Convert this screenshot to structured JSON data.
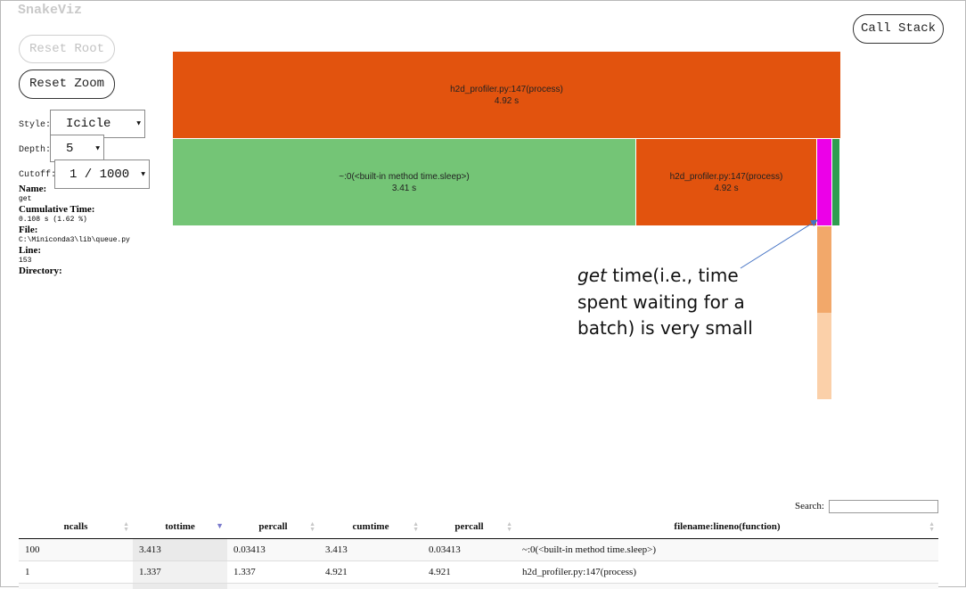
{
  "app": {
    "title": "SnakeViz"
  },
  "controls": {
    "reset_root": "Reset Root",
    "reset_zoom": "Reset Zoom",
    "call_stack": "Call Stack",
    "style_label": "Style:",
    "style_value": "Icicle",
    "depth_label": "Depth:",
    "depth_value": "5",
    "cutoff_label": "Cutoff:",
    "cutoff_value": "1 / 1000"
  },
  "info": {
    "name_label": "Name:",
    "name": "get",
    "cumtime_label": "Cumulative Time:",
    "cumtime": "0.108 s (1.62 %)",
    "file_label": "File:",
    "file": "C:\\Miniconda3\\lib\\queue.py",
    "line_label": "Line:",
    "line": "153",
    "directory_label": "Directory:"
  },
  "icicle": {
    "root": {
      "label": "h2d_profiler.py:147(process)",
      "time": "4.92 s",
      "color": "#e2530e"
    },
    "sleep": {
      "label": "~:0(<built-in method time.sleep>)",
      "time": "3.41 s",
      "color": "#74c576"
    },
    "process": {
      "label": "h2d_profiler.py:147(process)",
      "time": "4.92 s",
      "color": "#e2530e"
    },
    "get_color": "#ec00e8",
    "tail_color": "#2f9d50",
    "sub_colors": [
      "#f2a86a",
      "#fbd0a9"
    ]
  },
  "annotation": {
    "emphasis": "get",
    "line1_rest": " time(i.e., time",
    "line2": "spent waiting for a",
    "line3": "batch) is very small"
  },
  "search": {
    "label": "Search:",
    "value": ""
  },
  "table": {
    "headers": [
      "ncalls",
      "tottime",
      "percall",
      "cumtime",
      "percall",
      "filename:lineno(function)"
    ],
    "sorted_column": "tottime",
    "rows": [
      [
        "100",
        "3.413",
        "0.03413",
        "3.413",
        "0.03413",
        "~:0(<built-in method time.sleep>)"
      ],
      [
        "1",
        "1.337",
        "1.337",
        "4.921",
        "4.921",
        "h2d_profiler.py:147(process)"
      ]
    ]
  }
}
